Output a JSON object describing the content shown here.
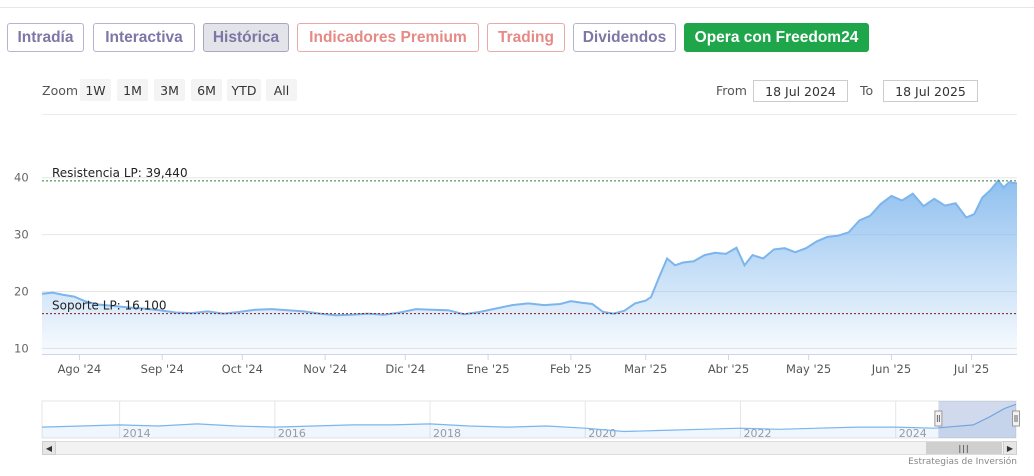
{
  "tabs": [
    {
      "label": "Intradía",
      "style": "default"
    },
    {
      "label": "Interactiva",
      "style": "default"
    },
    {
      "label": "Histórica",
      "style": "active"
    },
    {
      "label": "Indicadores Premium",
      "style": "red"
    },
    {
      "label": "Trading",
      "style": "red"
    },
    {
      "label": "Dividendos",
      "style": "default"
    },
    {
      "label": "Opera con Freedom24",
      "style": "green"
    }
  ],
  "zoom": {
    "label": "Zoom",
    "buttons": [
      "1W",
      "1M",
      "3M",
      "6M",
      "YTD",
      "All"
    ]
  },
  "range": {
    "from_label": "From",
    "from_value": "18 Jul 2024",
    "to_label": "To",
    "to_value": "18 Jul 2025"
  },
  "colors": {
    "line": "#7cb5ec",
    "resistance": "#2d7d2d",
    "support": "#8b1a1a",
    "button_green": "#1fa64a"
  },
  "scrollbar": {
    "left_arrow": "◀",
    "right_arrow": "▶",
    "thumb_grip": "|||"
  },
  "credits": "Estrategias de Inversión",
  "chart_data": {
    "type": "area",
    "ylim": [
      9,
      44
    ],
    "yticks": [
      10,
      20,
      30,
      40
    ],
    "xlim": [
      "2024-07-18",
      "2025-07-18"
    ],
    "xticks": [
      {
        "date": "2024-08-01",
        "label": "Ago '24"
      },
      {
        "date": "2024-09-01",
        "label": "Sep '24"
      },
      {
        "date": "2024-10-01",
        "label": "Oct '24"
      },
      {
        "date": "2024-11-01",
        "label": "Nov '24"
      },
      {
        "date": "2024-12-01",
        "label": "Dic '24"
      },
      {
        "date": "2025-01-01",
        "label": "Ene '25"
      },
      {
        "date": "2025-02-01",
        "label": "Feb '25"
      },
      {
        "date": "2025-03-01",
        "label": "Mar '25"
      },
      {
        "date": "2025-04-01",
        "label": "Abr '25"
      },
      {
        "date": "2025-05-01",
        "label": "May '25"
      },
      {
        "date": "2025-06-01",
        "label": "Jun '25"
      },
      {
        "date": "2025-07-01",
        "label": "Jul '25"
      }
    ],
    "series": [
      {
        "points": [
          [
            "2024-07-18",
            19.6
          ],
          [
            "2024-07-22",
            19.8
          ],
          [
            "2024-07-26",
            19.4
          ],
          [
            "2024-07-30",
            19.1
          ],
          [
            "2024-08-03",
            18.3
          ],
          [
            "2024-08-08",
            17.7
          ],
          [
            "2024-08-13",
            17.5
          ],
          [
            "2024-08-19",
            17.2
          ],
          [
            "2024-08-25",
            17.0
          ],
          [
            "2024-08-31",
            16.7
          ],
          [
            "2024-09-06",
            16.3
          ],
          [
            "2024-09-12",
            16.2
          ],
          [
            "2024-09-18",
            16.5
          ],
          [
            "2024-09-24",
            16.1
          ],
          [
            "2024-09-30",
            16.4
          ],
          [
            "2024-10-06",
            16.8
          ],
          [
            "2024-10-12",
            16.9
          ],
          [
            "2024-10-18",
            16.7
          ],
          [
            "2024-10-24",
            16.5
          ],
          [
            "2024-10-30",
            16.1
          ],
          [
            "2024-11-05",
            15.8
          ],
          [
            "2024-11-11",
            15.9
          ],
          [
            "2024-11-17",
            16.1
          ],
          [
            "2024-11-23",
            15.9
          ],
          [
            "2024-11-29",
            16.3
          ],
          [
            "2024-12-05",
            16.9
          ],
          [
            "2024-12-11",
            16.8
          ],
          [
            "2024-12-17",
            16.7
          ],
          [
            "2024-12-23",
            16.0
          ],
          [
            "2024-12-29",
            16.4
          ],
          [
            "2025-01-04",
            17.0
          ],
          [
            "2025-01-10",
            17.6
          ],
          [
            "2025-01-16",
            17.9
          ],
          [
            "2025-01-22",
            17.6
          ],
          [
            "2025-01-28",
            17.8
          ],
          [
            "2025-02-01",
            18.3
          ],
          [
            "2025-02-05",
            18.0
          ],
          [
            "2025-02-09",
            17.8
          ],
          [
            "2025-02-13",
            16.4
          ],
          [
            "2025-02-17",
            16.1
          ],
          [
            "2025-02-21",
            16.6
          ],
          [
            "2025-02-25",
            17.9
          ],
          [
            "2025-03-01",
            18.4
          ],
          [
            "2025-03-03",
            19.0
          ],
          [
            "2025-03-06",
            22.5
          ],
          [
            "2025-03-09",
            25.8
          ],
          [
            "2025-03-12",
            24.6
          ],
          [
            "2025-03-15",
            25.1
          ],
          [
            "2025-03-19",
            25.3
          ],
          [
            "2025-03-23",
            26.4
          ],
          [
            "2025-03-27",
            26.8
          ],
          [
            "2025-03-31",
            26.6
          ],
          [
            "2025-04-04",
            27.7
          ],
          [
            "2025-04-07",
            24.6
          ],
          [
            "2025-04-10",
            26.4
          ],
          [
            "2025-04-14",
            25.8
          ],
          [
            "2025-04-18",
            27.4
          ],
          [
            "2025-04-22",
            27.6
          ],
          [
            "2025-04-26",
            26.9
          ],
          [
            "2025-04-30",
            27.6
          ],
          [
            "2025-05-04",
            28.8
          ],
          [
            "2025-05-08",
            29.6
          ],
          [
            "2025-05-12",
            29.8
          ],
          [
            "2025-05-16",
            30.4
          ],
          [
            "2025-05-20",
            32.5
          ],
          [
            "2025-05-24",
            33.3
          ],
          [
            "2025-05-28",
            35.4
          ],
          [
            "2025-06-01",
            36.8
          ],
          [
            "2025-06-05",
            36.0
          ],
          [
            "2025-06-09",
            37.2
          ],
          [
            "2025-06-13",
            35.0
          ],
          [
            "2025-06-17",
            36.3
          ],
          [
            "2025-06-21",
            35.1
          ],
          [
            "2025-06-25",
            35.5
          ],
          [
            "2025-06-29",
            33.0
          ],
          [
            "2025-07-02",
            33.6
          ],
          [
            "2025-07-05",
            36.5
          ],
          [
            "2025-07-08",
            37.8
          ],
          [
            "2025-07-11",
            39.5
          ],
          [
            "2025-07-13",
            38.3
          ],
          [
            "2025-07-15",
            39.2
          ],
          [
            "2025-07-18",
            39.0
          ]
        ]
      }
    ],
    "plot_lines": [
      {
        "value": 39.44,
        "label": "Resistencia LP: 39,440",
        "color": "resistance"
      },
      {
        "value": 16.1,
        "label": "Soporte LP: 16,100",
        "color": "support"
      }
    ],
    "navigator": {
      "xlim": [
        2013,
        2025.55
      ],
      "labels": [
        "2014",
        "2016",
        "2018",
        "2020",
        "2022",
        "2024"
      ],
      "selection": [
        2024.55,
        2025.55
      ],
      "values": [
        [
          2013.0,
          18
        ],
        [
          2013.5,
          19
        ],
        [
          2014.0,
          20
        ],
        [
          2014.5,
          19
        ],
        [
          2015.0,
          21
        ],
        [
          2015.5,
          19
        ],
        [
          2016.0,
          18
        ],
        [
          2016.5,
          19
        ],
        [
          2017.0,
          20
        ],
        [
          2017.5,
          20
        ],
        [
          2018.0,
          21
        ],
        [
          2018.5,
          19
        ],
        [
          2019.0,
          18
        ],
        [
          2019.5,
          19
        ],
        [
          2020.0,
          17
        ],
        [
          2020.5,
          14
        ],
        [
          2021.0,
          15
        ],
        [
          2021.5,
          16
        ],
        [
          2022.0,
          17
        ],
        [
          2022.5,
          16
        ],
        [
          2023.0,
          17
        ],
        [
          2023.5,
          18
        ],
        [
          2024.0,
          18
        ],
        [
          2024.5,
          17
        ],
        [
          2025.0,
          20
        ],
        [
          2025.2,
          27
        ],
        [
          2025.4,
          35
        ],
        [
          2025.55,
          39
        ]
      ],
      "ylim": [
        8,
        42
      ]
    }
  }
}
